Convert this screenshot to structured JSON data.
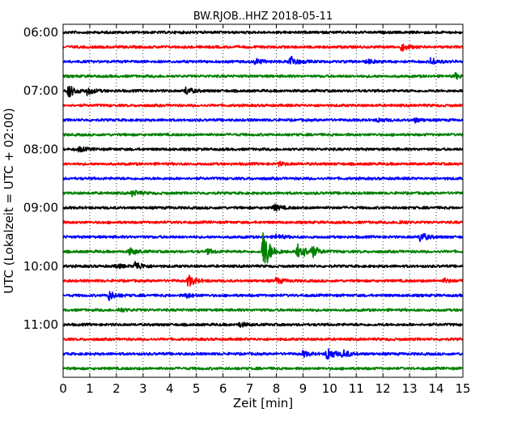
{
  "chart_data": {
    "type": "line",
    "title": "BW.RJOB..HHZ 2018-05-11",
    "xlabel": "Zeit  [min]",
    "ylabel": "UTC (Lokalzeit = UTC + 02:00)",
    "xlim": [
      0,
      15
    ],
    "x_ticks": [
      "0",
      "1",
      "2",
      "3",
      "4",
      "5",
      "6",
      "7",
      "8",
      "9",
      "10",
      "11",
      "12",
      "13",
      "14",
      "15"
    ],
    "y_tick_labels": [
      "06:00",
      "07:00",
      "08:00",
      "09:00",
      "10:00",
      "11:00"
    ],
    "grid": true,
    "trace_colors": [
      "#000000",
      "#ff0000",
      "#0000ff",
      "#008000"
    ],
    "trace_interval_min": 15,
    "traces": [
      {
        "start": "06:00",
        "color": "#000000",
        "events": []
      },
      {
        "start": "06:15",
        "color": "#ff0000",
        "events": [
          {
            "x": 12.7,
            "amp": 0.55
          }
        ]
      },
      {
        "start": "06:30",
        "color": "#0000ff",
        "events": [
          {
            "x": 7.2,
            "amp": 0.45
          },
          {
            "x": 8.5,
            "amp": 1.0
          },
          {
            "x": 11.4,
            "amp": 0.3
          },
          {
            "x": 13.8,
            "amp": 0.55
          }
        ]
      },
      {
        "start": "06:45",
        "color": "#008000",
        "events": [
          {
            "x": 14.7,
            "amp": 0.4
          }
        ]
      },
      {
        "start": "07:00",
        "color": "#000000",
        "events": [
          {
            "x": 0.2,
            "amp": 1.0
          },
          {
            "x": 0.9,
            "amp": 0.55
          },
          {
            "x": 4.6,
            "amp": 0.6
          }
        ]
      },
      {
        "start": "07:15",
        "color": "#ff0000",
        "events": []
      },
      {
        "start": "07:30",
        "color": "#0000ff",
        "events": [
          {
            "x": 11.8,
            "amp": 0.3
          },
          {
            "x": 13.2,
            "amp": 0.3
          }
        ]
      },
      {
        "start": "07:45",
        "color": "#008000",
        "events": []
      },
      {
        "start": "08:00",
        "color": "#000000",
        "events": [
          {
            "x": 0.6,
            "amp": 0.35
          }
        ]
      },
      {
        "start": "08:15",
        "color": "#ff0000",
        "events": [
          {
            "x": 8.1,
            "amp": 0.25
          }
        ]
      },
      {
        "start": "08:30",
        "color": "#0000ff",
        "events": []
      },
      {
        "start": "08:45",
        "color": "#008000",
        "events": [
          {
            "x": 2.6,
            "amp": 0.45
          }
        ]
      },
      {
        "start": "09:00",
        "color": "#000000",
        "events": [
          {
            "x": 7.9,
            "amp": 0.5
          }
        ]
      },
      {
        "start": "09:15",
        "color": "#ff0000",
        "events": [
          {
            "x": 12.6,
            "amp": 0.25
          }
        ]
      },
      {
        "start": "09:30",
        "color": "#0000ff",
        "events": [
          {
            "x": 8.0,
            "amp": 0.35
          },
          {
            "x": 13.4,
            "amp": 0.75
          }
        ]
      },
      {
        "start": "09:45",
        "color": "#008000",
        "events": [
          {
            "x": 2.5,
            "amp": 0.55
          },
          {
            "x": 5.4,
            "amp": 0.35
          },
          {
            "x": 7.5,
            "amp": 3.4
          },
          {
            "x": 8.8,
            "amp": 1.8
          },
          {
            "x": 9.3,
            "amp": 0.9
          }
        ]
      },
      {
        "start": "10:00",
        "color": "#000000",
        "events": [
          {
            "x": 2.0,
            "amp": 0.3
          },
          {
            "x": 2.7,
            "amp": 0.75
          }
        ]
      },
      {
        "start": "10:15",
        "color": "#ff0000",
        "events": [
          {
            "x": 4.7,
            "amp": 0.9
          },
          {
            "x": 8.0,
            "amp": 0.45
          },
          {
            "x": 14.3,
            "amp": 0.3
          }
        ]
      },
      {
        "start": "10:30",
        "color": "#0000ff",
        "events": [
          {
            "x": 1.7,
            "amp": 0.75
          },
          {
            "x": 4.6,
            "amp": 0.35
          }
        ]
      },
      {
        "start": "10:45",
        "color": "#008000",
        "events": [
          {
            "x": 2.1,
            "amp": 0.3
          }
        ]
      },
      {
        "start": "11:00",
        "color": "#000000",
        "events": [
          {
            "x": 6.6,
            "amp": 0.35
          }
        ]
      },
      {
        "start": "11:15",
        "color": "#ff0000",
        "events": []
      },
      {
        "start": "11:30",
        "color": "#0000ff",
        "events": [
          {
            "x": 9.0,
            "amp": 0.4
          },
          {
            "x": 9.9,
            "amp": 1.1
          },
          {
            "x": 10.5,
            "amp": 0.6
          }
        ]
      },
      {
        "start": "11:45",
        "color": "#008000",
        "events": []
      }
    ]
  }
}
